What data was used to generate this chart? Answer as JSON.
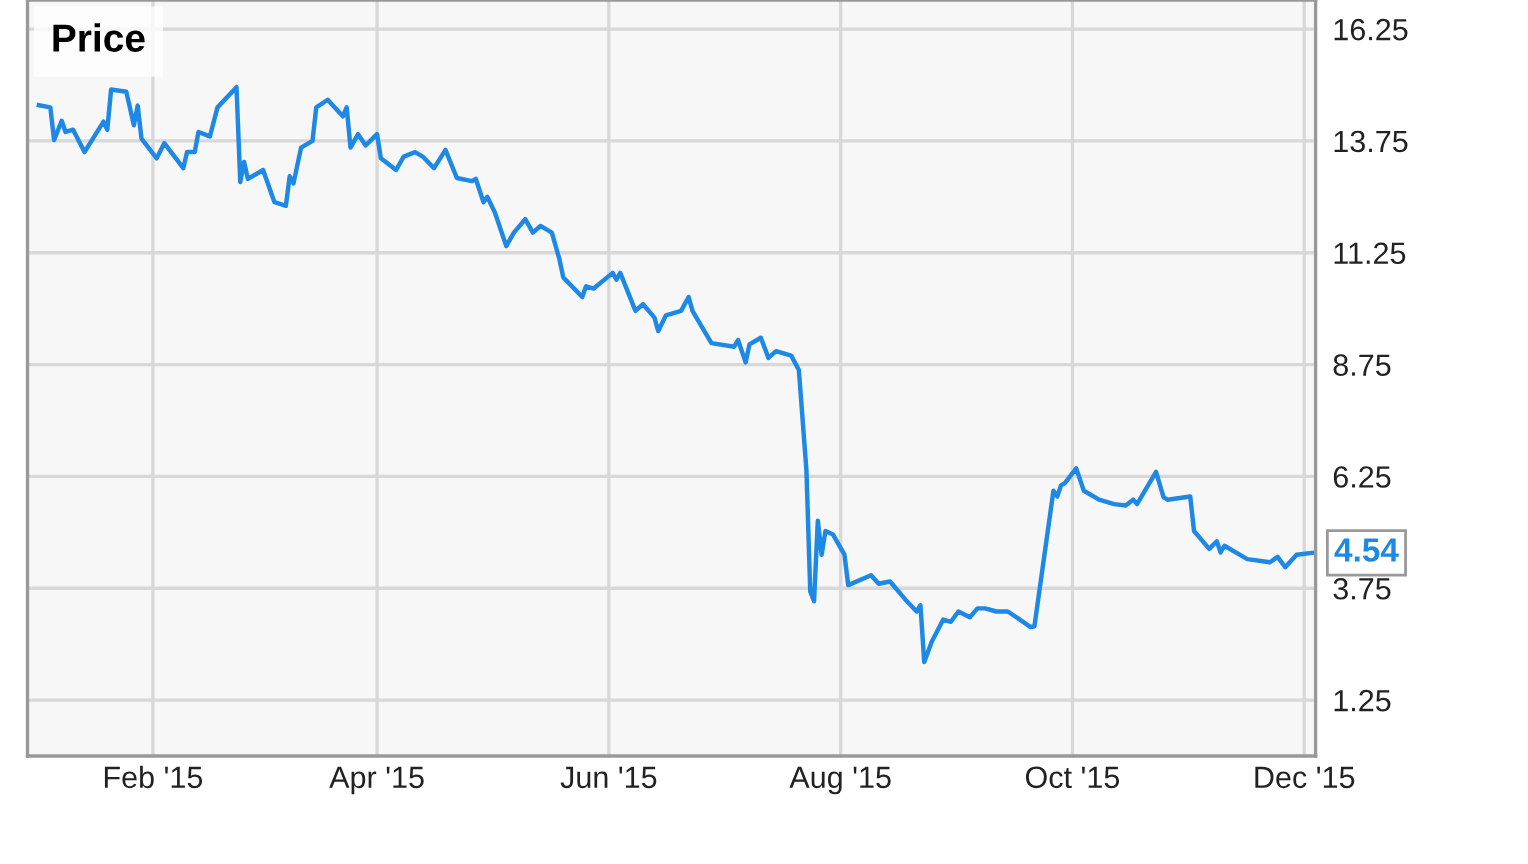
{
  "chart_data": {
    "type": "line",
    "x": [
      "2015-01-02",
      "2015-01-05",
      "2015-01-06",
      "2015-01-08",
      "2015-01-09",
      "2015-01-11",
      "2015-01-14",
      "2015-01-19",
      "2015-01-20",
      "2015-01-21",
      "2015-01-25",
      "2015-01-27",
      "2015-01-28",
      "2015-01-29",
      "2015-02-02",
      "2015-02-04",
      "2015-02-09",
      "2015-02-10",
      "2015-02-12",
      "2015-02-13",
      "2015-02-16",
      "2015-02-18",
      "2015-02-23",
      "2015-02-24",
      "2015-02-25",
      "2015-02-26",
      "2015-03-02",
      "2015-03-05",
      "2015-03-08",
      "2015-03-09",
      "2015-03-10",
      "2015-03-12",
      "2015-03-15",
      "2015-03-16",
      "2015-03-19",
      "2015-03-23",
      "2015-03-24",
      "2015-03-25",
      "2015-03-27",
      "2015-03-29",
      "2015-04-01",
      "2015-04-02",
      "2015-04-06",
      "2015-04-08",
      "2015-04-11",
      "2015-04-13",
      "2015-04-16",
      "2015-04-19",
      "2015-04-22",
      "2015-04-26",
      "2015-04-27",
      "2015-04-29",
      "2015-04-30",
      "2015-05-02",
      "2015-05-05",
      "2015-05-07",
      "2015-05-10",
      "2015-05-12",
      "2015-05-14",
      "2015-05-17",
      "2015-05-19",
      "2015-05-20",
      "2015-05-25",
      "2015-05-26",
      "2015-05-28",
      "2015-06-02",
      "2015-06-03",
      "2015-06-04",
      "2015-06-08",
      "2015-06-10",
      "2015-06-13",
      "2015-06-14",
      "2015-06-16",
      "2015-06-20",
      "2015-06-22",
      "2015-06-23",
      "2015-06-28",
      "2015-07-04",
      "2015-07-05",
      "2015-07-07",
      "2015-07-08",
      "2015-07-11",
      "2015-07-13",
      "2015-07-15",
      "2015-07-19",
      "2015-07-21",
      "2015-07-23",
      "2015-07-24",
      "2015-07-25",
      "2015-07-26",
      "2015-07-27",
      "2015-07-28",
      "2015-07-30",
      "2015-08-02",
      "2015-08-03",
      "2015-08-09",
      "2015-08-11",
      "2015-08-14",
      "2015-08-18",
      "2015-08-21",
      "2015-08-22",
      "2015-08-23",
      "2015-08-25",
      "2015-08-28",
      "2015-08-30",
      "2015-09-01",
      "2015-09-04",
      "2015-09-06",
      "2015-09-08",
      "2015-09-11",
      "2015-09-14",
      "2015-09-18",
      "2015-09-20",
      "2015-09-21",
      "2015-09-26",
      "2015-09-27",
      "2015-09-28",
      "2015-09-29",
      "2015-10-02",
      "2015-10-04",
      "2015-10-08",
      "2015-10-12",
      "2015-10-15",
      "2015-10-17",
      "2015-10-18",
      "2015-10-23",
      "2015-10-25",
      "2015-10-26",
      "2015-11-01",
      "2015-11-02",
      "2015-11-06",
      "2015-11-08",
      "2015-11-09",
      "2015-11-10",
      "2015-11-14",
      "2015-11-16",
      "2015-11-22",
      "2015-11-24",
      "2015-11-26",
      "2015-11-29",
      "2015-12-03"
    ],
    "series": [
      {
        "name": "Price",
        "color": "#1e88e5",
        "values": [
          14.55,
          14.5,
          13.77,
          14.2,
          13.95,
          14.0,
          13.5,
          14.18,
          14.0,
          14.9,
          14.85,
          14.1,
          14.54,
          13.8,
          13.36,
          13.7,
          13.14,
          13.5,
          13.5,
          13.95,
          13.85,
          14.5,
          14.95,
          12.83,
          13.28,
          12.9,
          13.1,
          12.38,
          12.3,
          12.96,
          12.8,
          13.6,
          13.75,
          14.5,
          14.67,
          14.3,
          14.5,
          13.6,
          13.9,
          13.65,
          13.9,
          13.36,
          13.1,
          13.4,
          13.5,
          13.4,
          13.14,
          13.55,
          12.92,
          12.85,
          12.9,
          12.38,
          12.5,
          12.15,
          11.4,
          11.7,
          12.0,
          11.7,
          11.85,
          11.7,
          11.1,
          10.7,
          10.26,
          10.5,
          10.45,
          10.8,
          10.65,
          10.8,
          9.95,
          10.1,
          9.8,
          9.5,
          9.85,
          9.95,
          10.26,
          9.95,
          9.23,
          9.15,
          9.3,
          8.8,
          9.2,
          9.35,
          8.9,
          9.05,
          8.95,
          8.63,
          6.38,
          3.68,
          3.46,
          5.26,
          4.5,
          5.03,
          4.95,
          4.5,
          3.82,
          4.04,
          3.85,
          3.9,
          3.5,
          3.23,
          3.37,
          2.1,
          2.56,
          3.05,
          3.0,
          3.23,
          3.1,
          3.3,
          3.3,
          3.23,
          3.23,
          3.0,
          2.88,
          2.9,
          5.93,
          5.8,
          6.05,
          6.1,
          6.43,
          5.93,
          5.73,
          5.63,
          5.6,
          5.73,
          5.63,
          6.35,
          5.78,
          5.73,
          5.8,
          5.03,
          4.63,
          4.8,
          4.55,
          4.7,
          4.5,
          4.4,
          4.33,
          4.45,
          4.22,
          4.5,
          4.54
        ]
      }
    ],
    "annotations": [
      {
        "text": "4.54",
        "x": "2015-12-03",
        "y": 4.54
      }
    ],
    "xlim": [
      "2014-12-30",
      "2015-12-04"
    ],
    "xticks": [
      {
        "value": "2015-02-01",
        "label": "Feb '15"
      },
      {
        "value": "2015-04-01",
        "label": "Apr '15"
      },
      {
        "value": "2015-06-01",
        "label": "Jun '15"
      },
      {
        "value": "2015-08-01",
        "label": "Aug '15"
      },
      {
        "value": "2015-10-01",
        "label": "Oct '15"
      },
      {
        "value": "2015-12-01",
        "label": "Dec '15"
      }
    ],
    "ylim": [
      0,
      16.9
    ],
    "yticks": [
      1.25,
      3.75,
      6.25,
      8.75,
      11.25,
      13.75,
      16.25
    ],
    "grid": true,
    "legend": "top left",
    "marker": "none",
    "line_style": "solid"
  }
}
